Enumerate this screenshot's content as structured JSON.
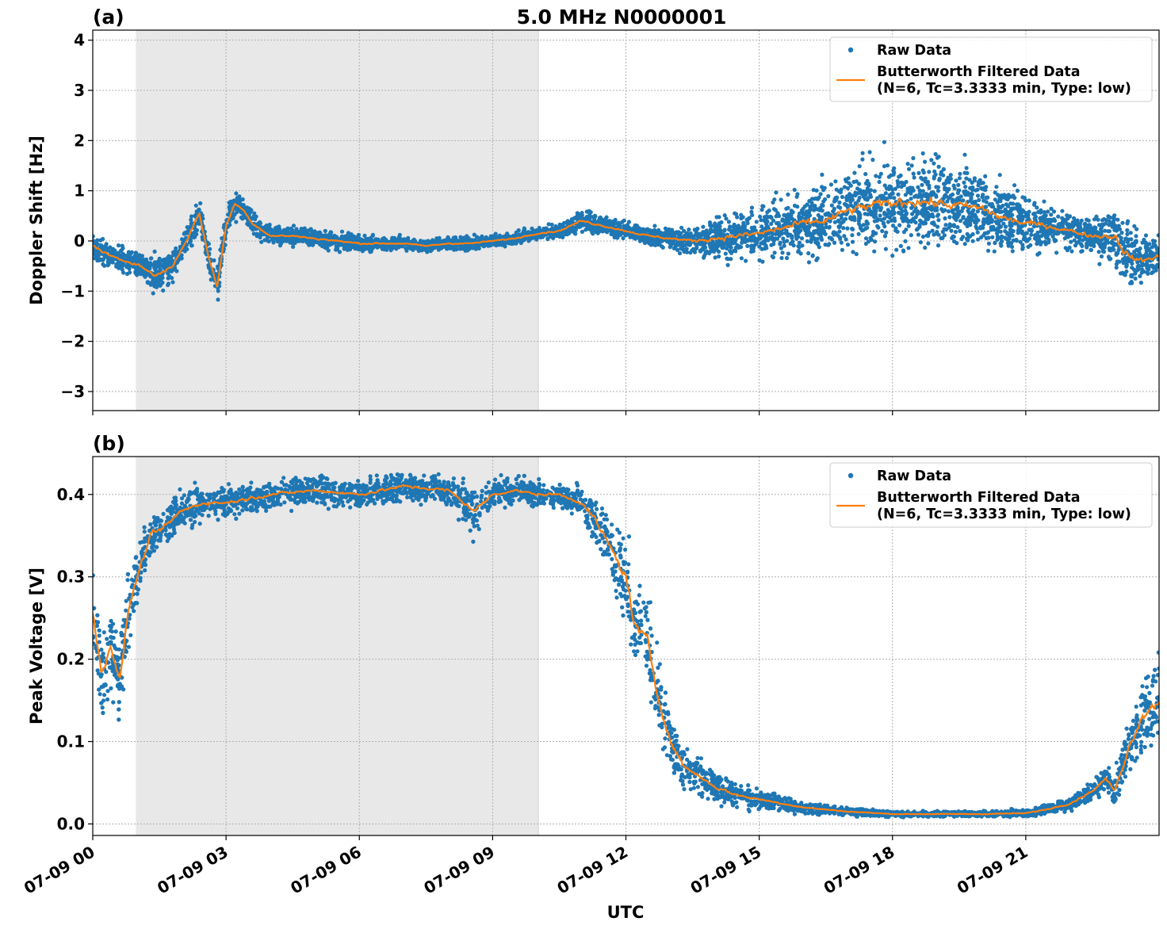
{
  "figure_title": "5.0 MHz N0000001",
  "xlabel": "UTC",
  "colors": {
    "raw": "#1f77b4",
    "filtered": "#ff7f0e",
    "night_shade": "#e8e8e8",
    "grid": "#b0b0b0"
  },
  "chart_data": [
    {
      "type": "scatter",
      "panel_label": "(a)",
      "title": "5.0 MHz N0000001",
      "ylabel": "Doppler Shift [Hz]",
      "xlim": [
        0,
        24
      ],
      "ylim": [
        -3.38,
        4.2
      ],
      "yticks": [
        4,
        3,
        2,
        1,
        0,
        -1,
        -2,
        -3
      ],
      "ytick_labels": [
        "4",
        "3",
        "2",
        "1",
        "0",
        "−1",
        "−2",
        "−3"
      ],
      "xticks": [
        0,
        3,
        6,
        9,
        12,
        15,
        18,
        21
      ],
      "xtick_labels": [
        "07-09 00",
        "07-09 03",
        "07-09 06",
        "07-09 09",
        "07-09 12",
        "07-09 15",
        "07-09 18",
        "07-09 21"
      ],
      "shade_span": [
        0.97,
        10.03
      ],
      "grid": true,
      "legend_position": "upper right",
      "legend": [
        "Raw Data",
        "Butterworth Filtered Data",
        "(N=6, Tc=3.3333 min, Type: low)"
      ],
      "filtered": {
        "x": [
          0,
          0.5,
          1,
          1.4,
          1.8,
          2.1,
          2.4,
          2.6,
          2.8,
          3.0,
          3.2,
          3.4,
          3.6,
          4.0,
          4.5,
          5.0,
          5.5,
          6.0,
          6.5,
          7.0,
          7.5,
          8.0,
          8.5,
          9.0,
          9.5,
          10.0,
          10.5,
          11.0,
          11.5,
          12.0,
          12.5,
          13.0,
          13.5,
          14.0,
          14.5,
          15.0,
          15.5,
          16.0,
          16.5,
          17.0,
          17.5,
          18.0,
          18.5,
          19.0,
          19.5,
          20.0,
          20.5,
          21.0,
          21.5,
          22.0,
          22.5,
          23.0,
          23.3,
          23.6,
          24.0
        ],
        "y": [
          -0.1,
          -0.35,
          -0.45,
          -0.7,
          -0.5,
          0.0,
          0.55,
          -0.3,
          -0.9,
          0.3,
          0.75,
          0.6,
          0.35,
          0.1,
          0.1,
          0.05,
          0.0,
          -0.05,
          -0.05,
          -0.05,
          -0.1,
          -0.05,
          -0.05,
          0.0,
          0.05,
          0.15,
          0.2,
          0.4,
          0.3,
          0.2,
          0.1,
          0.05,
          0.0,
          0.05,
          0.1,
          0.15,
          0.25,
          0.35,
          0.4,
          0.6,
          0.7,
          0.75,
          0.8,
          0.75,
          0.7,
          0.65,
          0.45,
          0.35,
          0.3,
          0.2,
          0.1,
          0.1,
          -0.3,
          -0.4,
          -0.3
        ]
      },
      "raw_band": {
        "x": [
          0,
          0.5,
          1,
          1.4,
          1.8,
          2.1,
          2.4,
          2.6,
          2.8,
          3.0,
          3.2,
          3.4,
          3.6,
          4.0,
          4.5,
          5.0,
          5.5,
          6.0,
          6.5,
          7.0,
          7.5,
          8.0,
          8.5,
          9.0,
          9.5,
          10.0,
          10.5,
          11.0,
          11.5,
          12.0,
          12.5,
          13.0,
          13.5,
          14.0,
          14.5,
          15.0,
          15.5,
          16.0,
          16.5,
          17.0,
          17.5,
          18.0,
          18.5,
          19.0,
          19.5,
          20.0,
          20.5,
          21.0,
          21.5,
          22.0,
          22.5,
          23.0,
          23.3,
          23.6,
          24.0
        ],
        "spread": [
          0.4,
          0.4,
          0.45,
          0.6,
          0.5,
          0.5,
          0.5,
          0.5,
          0.6,
          0.5,
          0.5,
          0.4,
          0.35,
          0.3,
          0.3,
          0.3,
          0.3,
          0.25,
          0.25,
          0.2,
          0.2,
          0.2,
          0.2,
          0.2,
          0.2,
          0.2,
          0.25,
          0.35,
          0.3,
          0.25,
          0.3,
          0.35,
          0.45,
          0.7,
          0.8,
          0.9,
          1.0,
          1.1,
          1.2,
          1.3,
          1.4,
          1.5,
          1.5,
          1.5,
          1.4,
          1.3,
          1.2,
          1.0,
          0.8,
          0.6,
          0.6,
          1.2,
          1.2,
          0.8,
          0.7
        ]
      }
    },
    {
      "type": "scatter",
      "panel_label": "(b)",
      "ylabel": "Peak Voltage [V]",
      "xlim": [
        0,
        24
      ],
      "ylim": [
        -0.014,
        0.446
      ],
      "yticks": [
        0.0,
        0.1,
        0.2,
        0.3,
        0.4
      ],
      "ytick_labels": [
        "0.0",
        "0.1",
        "0.2",
        "0.3",
        "0.4"
      ],
      "xticks": [
        0,
        3,
        6,
        9,
        12,
        15,
        18,
        21
      ],
      "xtick_labels": [
        "07-09 00",
        "07-09 03",
        "07-09 06",
        "07-09 09",
        "07-09 12",
        "07-09 15",
        "07-09 18",
        "07-09 21"
      ],
      "shade_span": [
        0.97,
        10.03
      ],
      "grid": true,
      "legend_position": "upper right",
      "legend": [
        "Raw Data",
        "Butterworth Filtered Data",
        "(N=6, Tc=3.3333 min, Type: low)"
      ],
      "filtered": {
        "x": [
          0,
          0.2,
          0.4,
          0.6,
          0.8,
          1.0,
          1.3,
          1.6,
          2.0,
          2.5,
          3.0,
          3.5,
          4.0,
          5.0,
          6.0,
          7.0,
          8.0,
          8.6,
          9.0,
          9.5,
          10.0,
          10.5,
          11.0,
          11.3,
          11.6,
          12.0,
          12.2,
          12.5,
          12.7,
          13.0,
          13.3,
          13.6,
          14.0,
          14.5,
          15.0,
          15.5,
          16.0,
          17.0,
          18.0,
          19.0,
          20.0,
          21.0,
          21.5,
          22.0,
          22.5,
          22.8,
          23.0,
          23.3,
          23.6,
          24.0
        ],
        "y": [
          0.26,
          0.18,
          0.22,
          0.17,
          0.26,
          0.3,
          0.35,
          0.36,
          0.38,
          0.39,
          0.39,
          0.395,
          0.4,
          0.405,
          0.4,
          0.41,
          0.405,
          0.38,
          0.4,
          0.405,
          0.4,
          0.4,
          0.39,
          0.37,
          0.34,
          0.3,
          0.24,
          0.22,
          0.16,
          0.1,
          0.07,
          0.06,
          0.045,
          0.035,
          0.03,
          0.025,
          0.02,
          0.015,
          0.012,
          0.012,
          0.012,
          0.013,
          0.018,
          0.025,
          0.04,
          0.055,
          0.04,
          0.09,
          0.13,
          0.15
        ]
      },
      "raw_band": {
        "x": [
          0,
          0.2,
          0.4,
          0.6,
          0.8,
          1.0,
          1.3,
          1.6,
          2.0,
          2.5,
          3.0,
          3.5,
          4.0,
          5.0,
          6.0,
          7.0,
          8.0,
          8.6,
          9.0,
          9.5,
          10.0,
          10.5,
          11.0,
          11.3,
          11.6,
          12.0,
          12.2,
          12.5,
          12.7,
          13.0,
          13.3,
          13.6,
          14.0,
          14.5,
          15.0,
          15.5,
          16.0,
          17.0,
          18.0,
          19.0,
          20.0,
          21.0,
          21.5,
          22.0,
          22.5,
          22.8,
          23.0,
          23.3,
          23.6,
          24.0
        ],
        "spread": [
          0.09,
          0.08,
          0.09,
          0.08,
          0.08,
          0.06,
          0.05,
          0.04,
          0.04,
          0.035,
          0.03,
          0.03,
          0.03,
          0.03,
          0.03,
          0.03,
          0.03,
          0.05,
          0.03,
          0.025,
          0.025,
          0.025,
          0.03,
          0.05,
          0.07,
          0.09,
          0.1,
          0.1,
          0.08,
          0.06,
          0.05,
          0.04,
          0.03,
          0.025,
          0.02,
          0.015,
          0.012,
          0.008,
          0.006,
          0.006,
          0.006,
          0.008,
          0.01,
          0.015,
          0.02,
          0.03,
          0.03,
          0.06,
          0.08,
          0.1
        ]
      }
    }
  ]
}
